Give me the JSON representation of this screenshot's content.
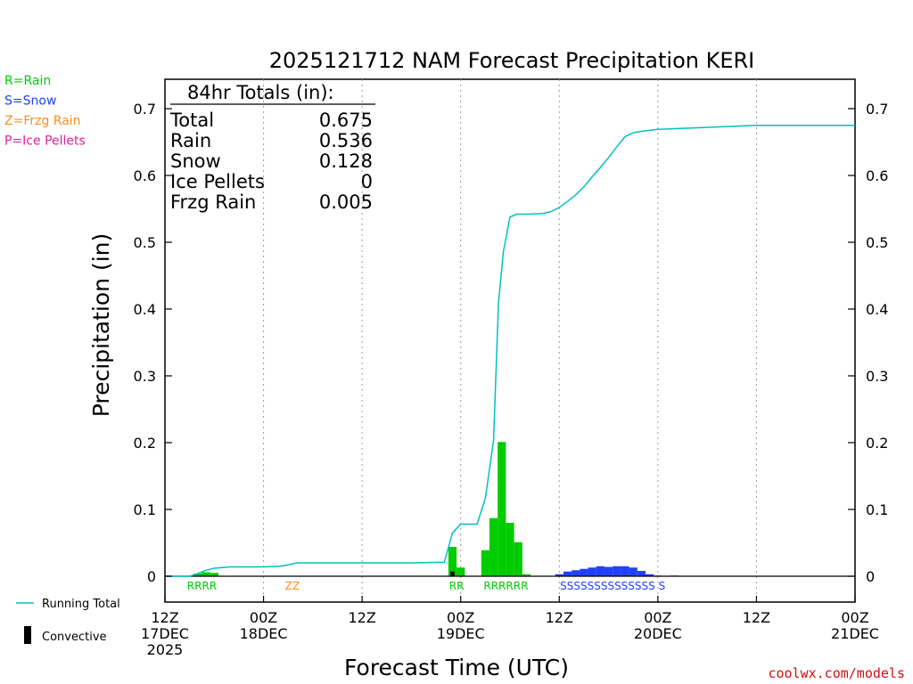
{
  "chart_data": {
    "type": "bar",
    "title": "2025121712 NAM Forecast Precipitation KERI",
    "xlabel": "Forecast Time (UTC)",
    "ylabel": "Precipitation (in)",
    "ylim": [
      -0.04,
      0.74
    ],
    "yticks": [
      0,
      0.1,
      0.2,
      0.3,
      0.4,
      0.5,
      0.6,
      0.7
    ],
    "ytick_labels": [
      "0",
      "0.1",
      "0.2",
      "0.3",
      "0.4",
      "0.5",
      "0.6",
      "0.7"
    ],
    "xlim_hours": [
      0,
      84
    ],
    "xticks": [
      {
        "hour": 0,
        "line1": "12Z",
        "line2": "17DEC",
        "line3": "2025"
      },
      {
        "hour": 12,
        "line1": "00Z",
        "line2": "18DEC",
        "line3": ""
      },
      {
        "hour": 24,
        "line1": "12Z",
        "line2": "",
        "line3": ""
      },
      {
        "hour": 36,
        "line1": "00Z",
        "line2": "19DEC",
        "line3": ""
      },
      {
        "hour": 48,
        "line1": "12Z",
        "line2": "",
        "line3": ""
      },
      {
        "hour": 60,
        "line1": "00Z",
        "line2": "20DEC",
        "line3": ""
      },
      {
        "hour": 72,
        "line1": "12Z",
        "line2": "",
        "line3": ""
      },
      {
        "hour": 84,
        "line1": "00Z",
        "line2": "21DEC",
        "line3": ""
      }
    ],
    "colors": {
      "rain": "#00cc00",
      "snow": "#2040ff",
      "frzg_rain": "#ff8c1a",
      "ice_pellets": "#e0209a",
      "running_total": "#00c0c0",
      "convective": "#000000",
      "credit": "#d01010"
    },
    "bars": [
      {
        "hour": 4,
        "type": "rain",
        "value": 0.004
      },
      {
        "hour": 5,
        "type": "rain",
        "value": 0.006
      },
      {
        "hour": 6,
        "type": "rain",
        "value": 0.005
      },
      {
        "hour": 35,
        "type": "rain",
        "value": 0.044
      },
      {
        "hour": 36,
        "type": "rain",
        "value": 0.013
      },
      {
        "hour": 39,
        "type": "rain",
        "value": 0.039
      },
      {
        "hour": 40,
        "type": "rain",
        "value": 0.087
      },
      {
        "hour": 41,
        "type": "rain",
        "value": 0.201
      },
      {
        "hour": 42,
        "type": "rain",
        "value": 0.08
      },
      {
        "hour": 43,
        "type": "rain",
        "value": 0.051
      },
      {
        "hour": 44,
        "type": "rain",
        "value": 0.003
      },
      {
        "hour": 48,
        "type": "snow",
        "value": 0.003
      },
      {
        "hour": 49,
        "type": "snow",
        "value": 0.007
      },
      {
        "hour": 50,
        "type": "snow",
        "value": 0.009
      },
      {
        "hour": 51,
        "type": "snow",
        "value": 0.011
      },
      {
        "hour": 52,
        "type": "snow",
        "value": 0.013
      },
      {
        "hour": 53,
        "type": "snow",
        "value": 0.015
      },
      {
        "hour": 54,
        "type": "snow",
        "value": 0.014
      },
      {
        "hour": 55,
        "type": "snow",
        "value": 0.015
      },
      {
        "hour": 56,
        "type": "snow",
        "value": 0.015
      },
      {
        "hour": 57,
        "type": "snow",
        "value": 0.013
      },
      {
        "hour": 58,
        "type": "snow",
        "value": 0.008
      },
      {
        "hour": 59,
        "type": "snow",
        "value": 0.003
      },
      {
        "hour": 60,
        "type": "snow",
        "value": 0.001
      },
      {
        "hour": 62,
        "type": "snow",
        "value": 0.001
      }
    ],
    "convective": [
      {
        "hour": 35,
        "value": 0.007
      }
    ],
    "running_total": {
      "hours": [
        0,
        3,
        4,
        5,
        6,
        7,
        8,
        10,
        12,
        14,
        15,
        16,
        20,
        24,
        30,
        34,
        35,
        36,
        38,
        39,
        40,
        40.6,
        41.2,
        42,
        42.8,
        44,
        46,
        47,
        48,
        49,
        50,
        51,
        52,
        53,
        54,
        55,
        56,
        57,
        58,
        60,
        62,
        64,
        66,
        68,
        70,
        72,
        76,
        80,
        84
      ],
      "values": [
        0,
        0,
        0.004,
        0.009,
        0.012,
        0.013,
        0.014,
        0.014,
        0.014,
        0.015,
        0.017,
        0.02,
        0.02,
        0.02,
        0.02,
        0.021,
        0.065,
        0.078,
        0.078,
        0.117,
        0.204,
        0.41,
        0.486,
        0.538,
        0.542,
        0.542,
        0.543,
        0.546,
        0.552,
        0.561,
        0.571,
        0.583,
        0.598,
        0.612,
        0.627,
        0.643,
        0.658,
        0.664,
        0.666,
        0.669,
        0.67,
        0.671,
        0.672,
        0.673,
        0.674,
        0.675,
        0.675,
        0.675,
        0.675
      ]
    },
    "ptype_labels": [
      {
        "hour": 4.5,
        "text": "RRRR",
        "type": "rain"
      },
      {
        "hour": 15.5,
        "text": "ZZ",
        "type": "frzg_rain"
      },
      {
        "hour": 35.5,
        "text": "RR",
        "type": "rain"
      },
      {
        "hour": 41.5,
        "text": "RRRRRR",
        "type": "rain"
      },
      {
        "hour": 54.5,
        "text": "SSSSSSSSSSSSSS S",
        "type": "snow"
      }
    ],
    "legend": [
      {
        "text": "R=Rain",
        "type": "rain"
      },
      {
        "text": "S=Snow",
        "type": "snow"
      },
      {
        "text": "Z=Frzg Rain",
        "type": "frzg_rain"
      },
      {
        "text": "P=Ice Pellets",
        "type": "ice_pellets"
      }
    ],
    "totals_box": {
      "header": "84hr Totals (in):",
      "rows": [
        {
          "label": "Total",
          "value": "0.675"
        },
        {
          "label": "Rain",
          "value": "0.536"
        },
        {
          "label": "Snow",
          "value": "0.128"
        },
        {
          "label": "Ice Pellets",
          "value": "0"
        },
        {
          "label": "Frzg Rain",
          "value": "0.005"
        }
      ]
    },
    "bottom_legend": {
      "running_total": "Running Total",
      "convective": "Convective"
    },
    "credit": "coolwx.com/models"
  }
}
